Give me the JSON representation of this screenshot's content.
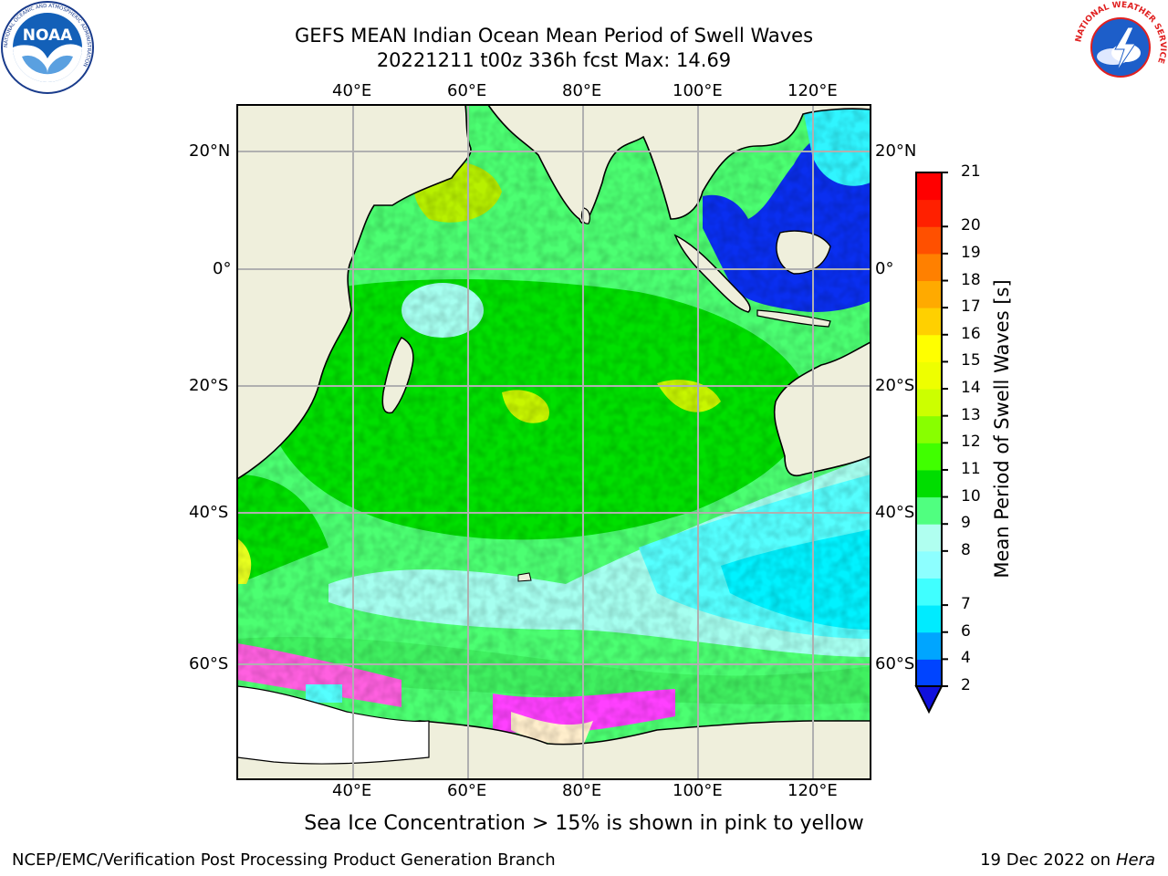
{
  "title_line1": "GEFS MEAN Indian Ocean Mean Period of Swell Waves",
  "title_line2": "20221211 t00z 336h fcst   Max: 14.69",
  "longitude_labels": [
    "40°E",
    "60°E",
    "80°E",
    "100°E",
    "120°E"
  ],
  "latitude_labels": [
    "20°N",
    "0°",
    "20°S",
    "40°S",
    "60°S"
  ],
  "colorbar": {
    "label": "Mean Period of Swell Waves [s]",
    "ticks": [
      "2",
      "4",
      "6",
      "7",
      "8",
      "9",
      "10",
      "11",
      "12",
      "13",
      "14",
      "15",
      "16",
      "17",
      "18",
      "19",
      "20",
      "21"
    ],
    "colors": [
      "#0044ff",
      "#00a5ff",
      "#00ebff",
      "#40ffff",
      "#8dffff",
      "#b0fff0",
      "#50ff80",
      "#00dd00",
      "#40ff00",
      "#88ff00",
      "#ccff00",
      "#eeff00",
      "#ffff00",
      "#ffd000",
      "#ffaa00",
      "#ff8000",
      "#ff5000",
      "#ff2000",
      "#ff0000"
    ],
    "extend_color": "#1010dd"
  },
  "caption": "Sea Ice Concentration > 15% is shown in pink to yellow",
  "footer_left": "NCEP/EMC/Verification Post Processing Product Generation Branch",
  "footer_date": "19 Dec 2022 on",
  "footer_host": "Hera",
  "logos": {
    "noaa_text": "NOAA",
    "noaa_ring": "NATIONAL OCEANIC AND ATMOSPHERIC ADMINISTRATION",
    "nws_ring": "NATIONAL WEATHER SERVICE"
  }
}
